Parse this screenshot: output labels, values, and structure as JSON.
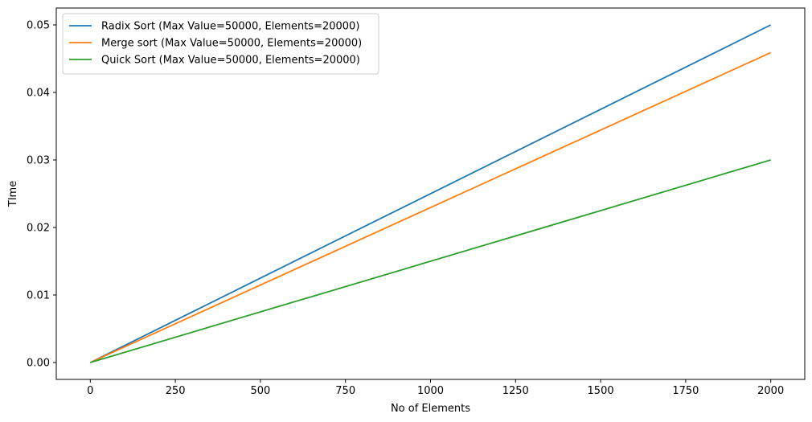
{
  "chart_data": {
    "type": "line",
    "title": "",
    "xlabel": "No of Elements",
    "ylabel": "TIme",
    "xlim": [
      -100,
      2100
    ],
    "ylim": [
      -0.0025,
      0.0525
    ],
    "xticks": [
      0,
      250,
      500,
      750,
      1000,
      1250,
      1500,
      1750,
      2000
    ],
    "xtick_labels": [
      "0",
      "250",
      "500",
      "750",
      "1000",
      "1250",
      "1500",
      "1750",
      "2000"
    ],
    "yticks": [
      0.0,
      0.01,
      0.02,
      0.03,
      0.04,
      0.05
    ],
    "ytick_labels": [
      "0.00",
      "0.01",
      "0.02",
      "0.03",
      "0.04",
      "0.05"
    ],
    "grid": false,
    "legend": {
      "placement": "top-left"
    },
    "series": [
      {
        "name": "Radix Sort (Max Value=50000, Elements=20000)",
        "color": "#1f77b4",
        "x": [
          0,
          2000
        ],
        "y": [
          0.0,
          0.05
        ]
      },
      {
        "name": "Merge sort (Max Value=50000, Elements=20000)",
        "color": "#ff7f0e",
        "x": [
          0,
          2000
        ],
        "y": [
          0.0,
          0.0459
        ]
      },
      {
        "name": "Quick Sort (Max Value=50000, Elements=20000)",
        "color": "#2ca02c",
        "x": [
          0,
          2000
        ],
        "y": [
          0.0,
          0.03
        ]
      }
    ]
  }
}
